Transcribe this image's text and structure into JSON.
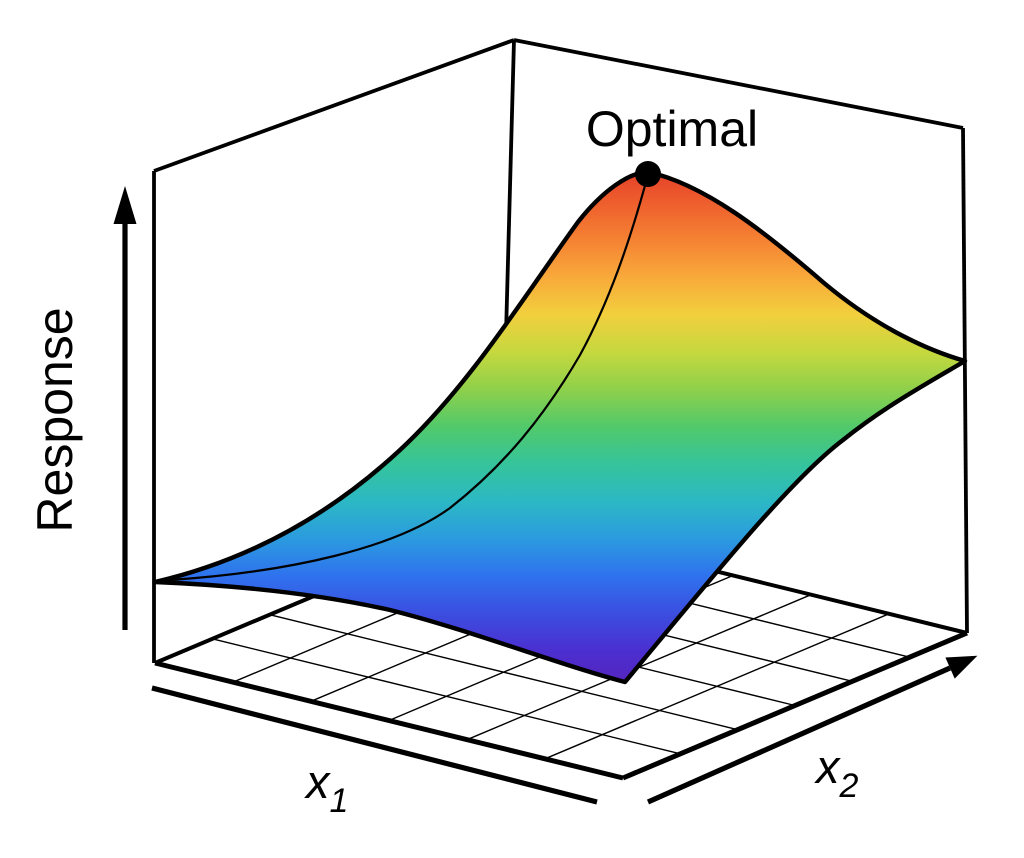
{
  "figure": {
    "background_color": "#ffffff",
    "line_color": "#000000",
    "labels": {
      "optimal": "Optimal",
      "response_axis": "Response",
      "x1_base": "x",
      "x1_sub": "1",
      "x2_base": "x",
      "x2_sub": "2"
    }
  },
  "chart_data": {
    "type": "heatmap",
    "representation": "3d_response_surface_plot",
    "title": "",
    "xlabel": "x1",
    "ylabel": "x2",
    "zlabel": "Response",
    "axes": {
      "x1": {
        "label": "x",
        "subscript": "1",
        "arrow": false,
        "ticks": []
      },
      "x2": {
        "label": "x",
        "subscript": "2",
        "arrow": true,
        "ticks": []
      },
      "z": {
        "label": "Response",
        "arrow": true,
        "ticks": []
      }
    },
    "annotations": [
      {
        "text": "Optimal",
        "marker": "filled-black-dot",
        "location": "maximum of the surface"
      }
    ],
    "curves": [
      {
        "name": "path-to-optimum",
        "style": "thin black line drawn on the surface from the near-left corner rising to the Optimal point"
      }
    ],
    "grid": {
      "floor_grid": true,
      "floor_grid_divisions": 6,
      "wall_grid": false
    },
    "surface": {
      "description": "Smooth unimodal hill (response surface) over the x1-x2 domain, colored by height with a rainbow colormap; low front corners, elevated right corner, maximum toward the back labeled Optimal.",
      "colormap_low_to_high": [
        "#5723bb",
        "#4b2fd0",
        "#3b4ee0",
        "#2f72ee",
        "#2b9bdf",
        "#2cb8c4",
        "#35c49b",
        "#52c96a",
        "#8fd04a",
        "#c6d83e",
        "#f2cf3d",
        "#f8a93a",
        "#f58233",
        "#ee5e2d",
        "#e23b27"
      ],
      "z_grid_normalized": {
        "x1": [
          0,
          0.25,
          0.5,
          0.75,
          1
        ],
        "x2": [
          0,
          0.25,
          0.5,
          0.75,
          1
        ],
        "z": [
          [
            0.19,
            0.25,
            0.28,
            0.25,
            0.22
          ],
          [
            0.28,
            0.42,
            0.5,
            0.44,
            0.33
          ],
          [
            0.4,
            0.62,
            0.75,
            0.66,
            0.48
          ],
          [
            0.48,
            0.78,
            0.97,
            0.84,
            0.58
          ],
          [
            0.45,
            0.75,
            0.93,
            0.8,
            0.63
          ]
        ]
      },
      "corner_heights_normalized": {
        "x1_0_x2_0": 0.19,
        "x1_1_x2_0": 0.22,
        "x1_1_x2_1": 0.63,
        "x1_0_x2_1": 0.45
      },
      "peak_normalized": {
        "x1": 0.5,
        "x2": 0.8,
        "z": 1.0
      }
    }
  }
}
